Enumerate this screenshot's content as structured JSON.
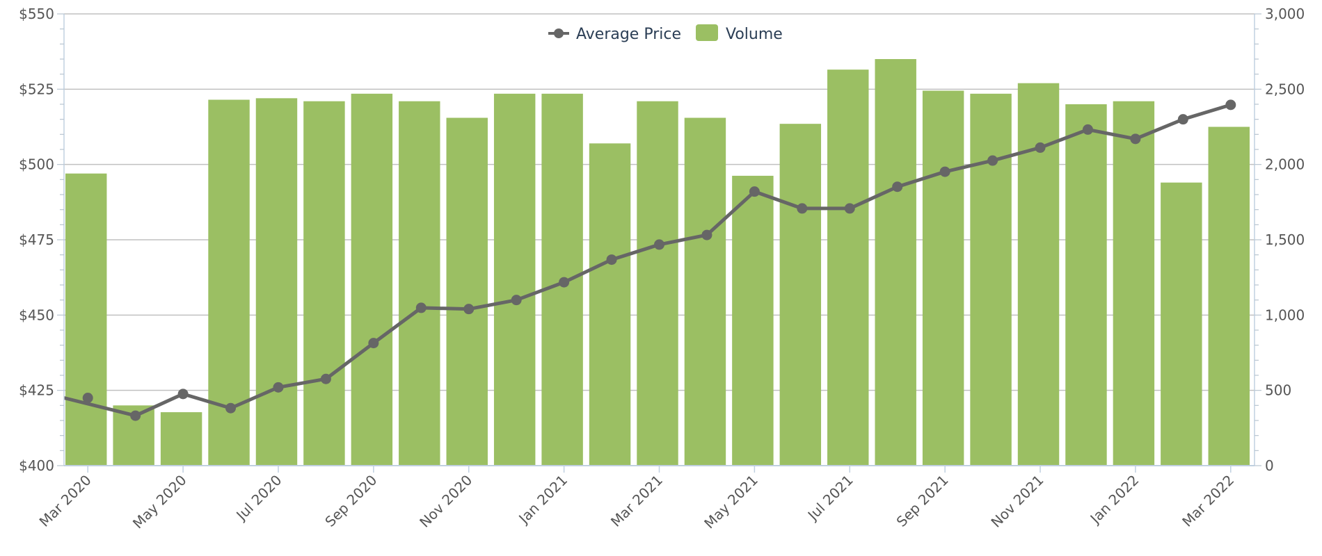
{
  "chart_data": {
    "type": "bar+line",
    "title": "",
    "xlabel": "",
    "ylabel": "",
    "categories": [
      "Mar 2020",
      "Apr 2020",
      "May 2020",
      "Jun 2020",
      "Jul 2020",
      "Aug 2020",
      "Sep 2020",
      "Oct 2020",
      "Nov 2020",
      "Dec 2020",
      "Jan 2021",
      "Feb 2021",
      "Mar 2021",
      "Apr 2021",
      "May 2021",
      "Jun 2021",
      "Jul 2021",
      "Aug 2021",
      "Sep 2021",
      "Oct 2021",
      "Nov 2021",
      "Dec 2021",
      "Jan 2022",
      "Feb 2022",
      "Mar 2022"
    ],
    "x_tick_labels": [
      "Mar 2020",
      "May 2020",
      "Jul 2020",
      "Sep 2020",
      "Nov 2020",
      "Jan 2021",
      "Mar 2021",
      "May 2021",
      "Jul 2021",
      "Sep 2021",
      "Nov 2021",
      "Jan 2022",
      "Mar 2022"
    ],
    "series": [
      {
        "name": "Average Price",
        "kind": "line",
        "axis": "left",
        "color": "#666666",
        "values": [
          422.5,
          416.6,
          423.8,
          419.1,
          426.0,
          428.8,
          440.7,
          452.4,
          452.0,
          455.0,
          460.9,
          468.4,
          473.4,
          476.6,
          491.0,
          485.4,
          485.4,
          492.6,
          497.6,
          501.3,
          505.6,
          511.6,
          508.5,
          515.0,
          519.8
        ]
      },
      {
        "name": "Volume",
        "kind": "bar",
        "axis": "right",
        "color": "#9bbf63",
        "values": [
          1940,
          400,
          355,
          2430,
          2440,
          2420,
          2470,
          2420,
          2310,
          2470,
          2470,
          2140,
          2420,
          2310,
          1925,
          2270,
          2630,
          2700,
          2490,
          2470,
          2540,
          2400,
          2420,
          1880,
          2250
        ]
      }
    ],
    "y_left": {
      "min": 400,
      "max": 550,
      "ticks": [
        400,
        425,
        450,
        475,
        500,
        525,
        550
      ],
      "tick_labels": [
        "$400",
        "$425",
        "$450",
        "$475",
        "$500",
        "$525",
        "$550"
      ]
    },
    "y_right": {
      "min": 0,
      "max": 3000,
      "ticks": [
        0,
        500,
        1000,
        1500,
        2000,
        2500,
        3000
      ],
      "tick_labels": [
        "0",
        "500",
        "1,000",
        "1,500",
        "2,000",
        "2,500",
        "3,000"
      ]
    },
    "grid": true,
    "legend_position": "top-center"
  },
  "colors": {
    "bar": "#9bbf63",
    "line": "#666666",
    "grid": "#c0c0c0",
    "axis": "#c0d0e0"
  }
}
